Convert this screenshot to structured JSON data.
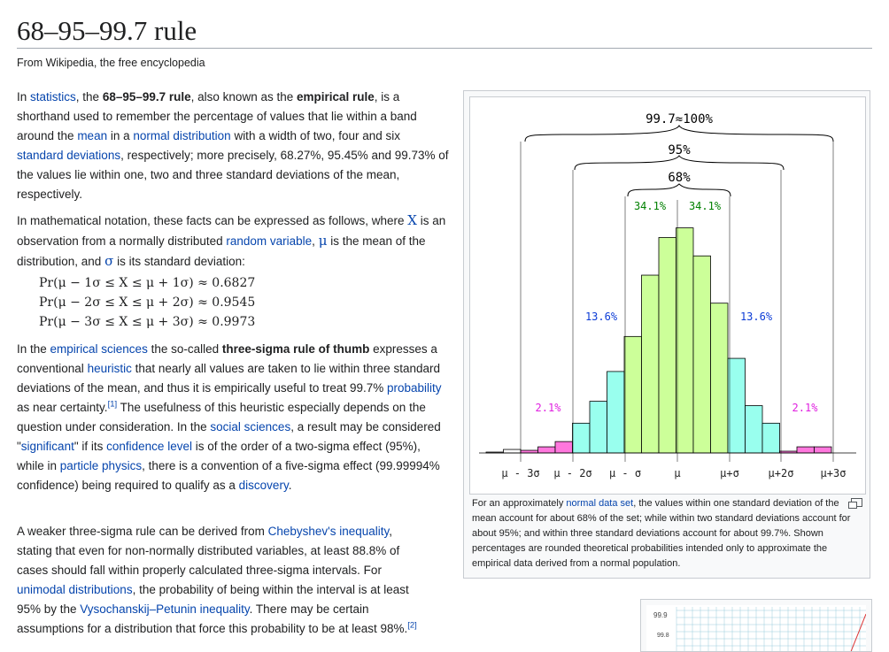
{
  "page": {
    "title": "68–95–99.7 rule",
    "tagline": "From Wikipedia, the free encyclopedia"
  },
  "para1": {
    "t1": "In ",
    "l1": "statistics",
    "t2": ", the ",
    "b1": "68–95–99.7 rule",
    "t3": ", also known as the ",
    "b2": "empirical rule",
    "t4": ", is a shorthand used to remember the percentage of values that lie within a band around the ",
    "l2": "mean",
    "t5": " in a ",
    "l3": "normal distribution",
    "t6": " with a width of two, four and six ",
    "l4": "standard deviations",
    "t7": ", respectively; more precisely, 68.27%, 95.45% and 99.73% of the values lie within one, two and three standard deviations of the mean, respectively."
  },
  "para2": {
    "t1": "In mathematical notation, these facts can be expressed as follows, where ",
    "x": "X",
    "t2": " is an observation from a normally distributed ",
    "l1": "random variable",
    "t3": ", ",
    "mu": "μ",
    "t4": " is the mean of the distribution, and ",
    "sigma": "σ",
    "t5": " is its standard deviation:"
  },
  "equations": [
    "Pr(μ − 1σ ≤ X ≤ μ + 1σ) ≈ 0.6827",
    "Pr(μ − 2σ ≤ X ≤ μ + 2σ) ≈ 0.9545",
    "Pr(μ − 3σ ≤ X ≤ μ + 3σ) ≈ 0.9973"
  ],
  "para3": {
    "t1": "In the ",
    "l1": "empirical sciences",
    "t2": " the so-called ",
    "b1": "three-sigma rule of thumb",
    "t3": " expresses a conventional ",
    "l2": "heuristic",
    "t4": " that nearly all values are taken to lie within three standard deviations of the mean, and thus it is empirically useful to treat 99.7% ",
    "l3": "probability",
    "t5": " as near certainty.",
    "ref1": "[1]",
    "t6": " The usefulness of this heuristic especially depends on the question under consideration. In the ",
    "l4": "social sciences",
    "t7": ", a result may be considered \"",
    "l5": "significant",
    "t8": "\" if its ",
    "l6": "confidence level",
    "t9": " is of the order of a two-sigma effect (95%), while in ",
    "l7": "particle physics",
    "t10": ", there is a convention of a five-sigma effect (99.99994% confidence) being required to qualify as a ",
    "l8": "discovery",
    "t11": "."
  },
  "para4": {
    "t1": "A weaker three-sigma rule can be derived from ",
    "l1": "Chebyshev's inequality",
    "t2": ", stating that even for non-normally distributed variables, at least 88.8% of cases should fall within properly calculated three-sigma intervals. For ",
    "l2": "unimodal distributions",
    "t3": ", the probability of being within the interval is at least 95% by the ",
    "l3": "Vysochanskij–Petunin inequality",
    "t4": ". There may be certain assumptions for a distribution that force this probability to be at least 98%.",
    "ref2": "[2]"
  },
  "figure": {
    "caption_t1": "For an approximately ",
    "caption_l1": "normal data set",
    "caption_t2": ", the values within one standard deviation of the mean account for about 68% of the set; while within two standard deviations account for about 95%; and within three standard deviations account for about 99.7%. Shown percentages are rounded theoretical probabilities intended only to approximate the empirical data derived from a normal population.",
    "label_997": "99.7≈100%",
    "label_95": "95%",
    "label_68": "68%",
    "label_341_left": "34.1%",
    "label_341_right": "34.1%",
    "label_136_left": "13.6%",
    "label_136_right": "13.6%",
    "label_21_left": "2.1%",
    "label_21_right": "2.1%",
    "colors": {
      "green_text": "#008000",
      "blue_text": "#0b3bd6",
      "magenta_text": "#e020e0",
      "green_fill": "#ccff99",
      "cyan_fill": "#99ffee",
      "pink_fill": "#ff77dd"
    }
  },
  "chart_data": {
    "type": "bar",
    "categories": [
      "μ − 3σ",
      "μ − 2σ",
      "μ − σ",
      "μ",
      "μ+σ",
      "μ+2σ",
      "μ+3σ"
    ],
    "tick_labels": [
      "μ - 3σ",
      "μ - 2σ",
      "μ - σ",
      "μ",
      "μ+σ",
      "μ+2σ",
      "μ+3σ"
    ],
    "bins": [
      {
        "v": 1,
        "zone": "outer"
      },
      {
        "v": 4,
        "zone": "outer"
      },
      {
        "v": 3,
        "zone": "pink"
      },
      {
        "v": 7,
        "zone": "pink"
      },
      {
        "v": 13,
        "zone": "pink"
      },
      {
        "v": 34,
        "zone": "cyan"
      },
      {
        "v": 59,
        "zone": "cyan"
      },
      {
        "v": 93,
        "zone": "cyan"
      },
      {
        "v": 133,
        "zone": "green"
      },
      {
        "v": 203,
        "zone": "green"
      },
      {
        "v": 246,
        "zone": "green"
      },
      {
        "v": 257,
        "zone": "green"
      },
      {
        "v": 225,
        "zone": "green"
      },
      {
        "v": 171,
        "zone": "green"
      },
      {
        "v": 108,
        "zone": "cyan"
      },
      {
        "v": 54,
        "zone": "cyan"
      },
      {
        "v": 34,
        "zone": "cyan"
      },
      {
        "v": 2,
        "zone": "pink"
      },
      {
        "v": 7,
        "zone": "pink"
      },
      {
        "v": 7,
        "zone": "pink"
      }
    ]
  },
  "second_figure": {
    "tick1": "99.9",
    "tick2": "99.8"
  }
}
